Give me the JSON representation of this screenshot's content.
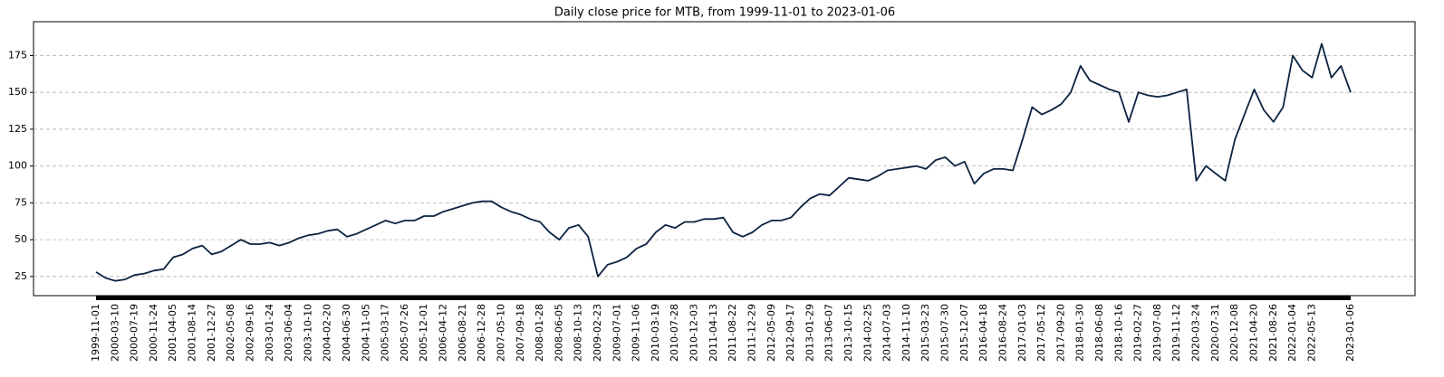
{
  "chart_data": {
    "type": "line",
    "title": "Daily close price for MTB, from 1999-11-01 to 2023-01-06",
    "categories": [
      "1999-11-01",
      null,
      "2000-03-10",
      null,
      "2000-07-19",
      null,
      "2000-11-24",
      null,
      "2001-04-05",
      null,
      "2001-08-14",
      null,
      "2001-12-27",
      null,
      "2002-05-08",
      null,
      "2002-09-16",
      null,
      "2003-01-24",
      null,
      "2003-06-04",
      null,
      "2003-10-10",
      null,
      "2004-02-20",
      null,
      "2004-06-30",
      null,
      "2004-11-05",
      null,
      "2005-03-17",
      null,
      "2005-07-26",
      null,
      "2005-12-01",
      null,
      "2006-04-12",
      null,
      "2006-08-21",
      null,
      "2006-12-28",
      null,
      "2007-05-10",
      null,
      "2007-09-18",
      null,
      "2008-01-28",
      null,
      "2008-06-05",
      null,
      "2008-10-13",
      null,
      "2009-02-23",
      null,
      "2009-07-01",
      null,
      "2009-11-06",
      null,
      "2010-03-19",
      null,
      "2010-07-28",
      null,
      "2010-12-03",
      null,
      "2011-04-13",
      null,
      "2011-08-22",
      null,
      "2011-12-29",
      null,
      "2012-05-09",
      null,
      "2012-09-17",
      null,
      "2013-01-29",
      null,
      "2013-06-07",
      null,
      "2013-10-15",
      null,
      "2014-02-25",
      null,
      "2014-07-03",
      null,
      "2014-11-10",
      null,
      "2015-03-23",
      null,
      "2015-07-30",
      null,
      "2015-12-07",
      null,
      "2016-04-18",
      null,
      "2016-08-24",
      null,
      "2017-01-03",
      null,
      "2017-05-12",
      null,
      "2017-09-20",
      null,
      "2018-01-30",
      null,
      "2018-06-08",
      null,
      "2018-10-16",
      null,
      "2019-02-27",
      null,
      "2019-07-08",
      null,
      "2019-11-12",
      null,
      "2020-03-24",
      null,
      "2020-07-31",
      null,
      "2020-12-08",
      null,
      "2021-04-20",
      null,
      "2021-08-26",
      null,
      "2022-01-04",
      null,
      "2022-05-13",
      null,
      null,
      null,
      "2023-01-06"
    ],
    "values": [
      28,
      24,
      22,
      23,
      26,
      27,
      29,
      30,
      38,
      40,
      44,
      46,
      40,
      42,
      46,
      50,
      47,
      47,
      48,
      46,
      48,
      51,
      53,
      54,
      56,
      57,
      52,
      54,
      57,
      60,
      63,
      61,
      63,
      63,
      66,
      66,
      69,
      71,
      73,
      75,
      76,
      76,
      72,
      69,
      67,
      64,
      62,
      55,
      50,
      58,
      60,
      52,
      25,
      33,
      35,
      38,
      44,
      47,
      55,
      60,
      58,
      62,
      62,
      64,
      64,
      65,
      55,
      52,
      55,
      60,
      63,
      63,
      65,
      72,
      78,
      81,
      80,
      86,
      92,
      91,
      90,
      93,
      97,
      98,
      99,
      100,
      98,
      104,
      106,
      100,
      103,
      88,
      95,
      98,
      98,
      97,
      118,
      140,
      135,
      138,
      142,
      150,
      168,
      158,
      155,
      152,
      150,
      130,
      150,
      148,
      147,
      148,
      150,
      152,
      90,
      100,
      95,
      90,
      118,
      135,
      152,
      138,
      130,
      140,
      175,
      165,
      160,
      183,
      160,
      168,
      150
    ],
    "color": "#0c2340",
    "ylim": [
      12,
      198
    ],
    "yticks": [
      25,
      50,
      75,
      100,
      125,
      150,
      175
    ],
    "grid": true
  }
}
